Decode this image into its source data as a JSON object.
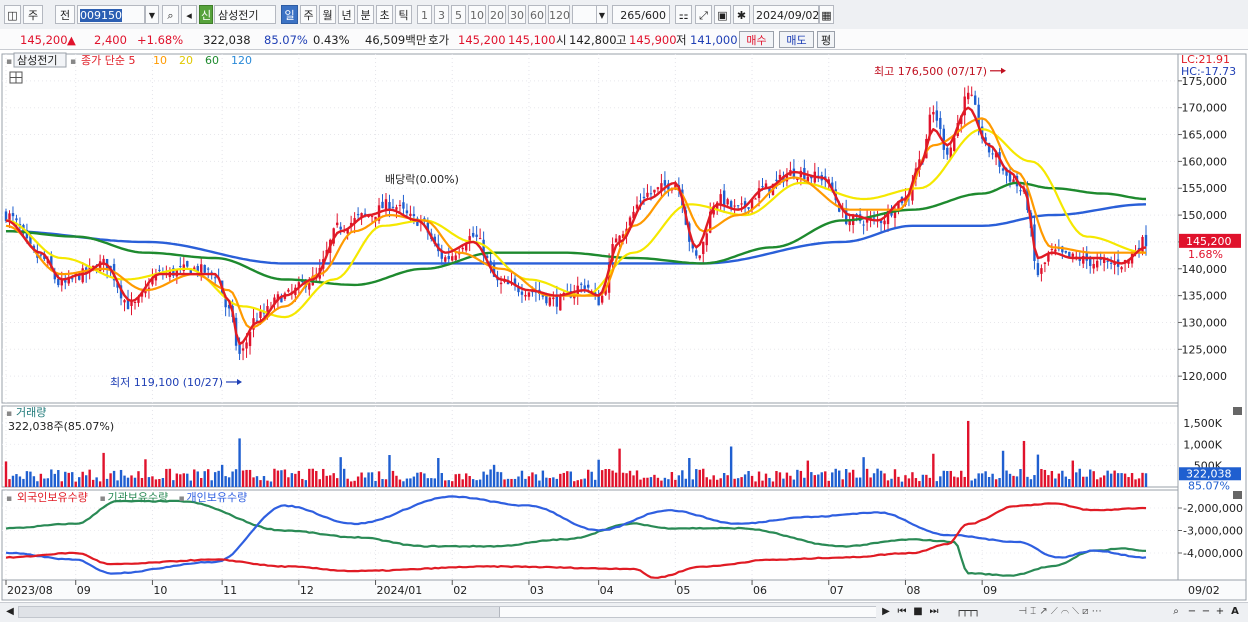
{
  "toolbar": {
    "mode_label": "주",
    "jeon_label": "전",
    "code": "009150",
    "new_label": "신",
    "name": "삼성전기",
    "periods": [
      "일",
      "주",
      "월",
      "년",
      "분",
      "초",
      "틱"
    ],
    "active_period": "일",
    "intervals": [
      "1",
      "3",
      "5",
      "10",
      "20",
      "30",
      "60",
      "120"
    ],
    "count": "265",
    "count_max": "/600",
    "date": "2024/09/02"
  },
  "quote": {
    "price": "145,200",
    "change": "2,400",
    "change_pct": "+1.68%",
    "volume": "322,038",
    "volume_ratio": "85.07%",
    "turnover_pct": "0.43%",
    "amount": "46,509백만",
    "hoga_label": "호가",
    "ask": "145,200",
    "bid": "145,100",
    "open_label": "시",
    "open": "142,800",
    "high_label": "고",
    "high": "145,900",
    "low_label": "저",
    "low": "141,000",
    "buy_label": "매수",
    "sell_label": "매도",
    "avg_label": "평"
  },
  "colors": {
    "up": "#e0122c",
    "down": "#1f5fd0",
    "ma5": "#e01b24",
    "ma10": "#ff9a00",
    "ma20": "#f5e800",
    "ma60": "#1e8a2e",
    "ma120": "#2a5fd8",
    "foreign": "#e01b24",
    "institution": "#2a8a55",
    "individual": "#2f5fe0"
  },
  "chart_data": [
    {
      "type": "candlestick",
      "stock_name": "삼성전기",
      "legend": [
        {
          "text": "종가 단순 5",
          "color": "#e01b24"
        },
        {
          "text": "10",
          "color": "#ff9a00"
        },
        {
          "text": "20",
          "color": "#e0c800"
        },
        {
          "text": "60",
          "color": "#1e8a2e"
        },
        {
          "text": "120",
          "color": "#2a8ad8"
        }
      ],
      "ylim": [
        115000,
        180000
      ],
      "yticks": [
        120000,
        125000,
        130000,
        135000,
        140000,
        145000,
        150000,
        155000,
        160000,
        165000,
        170000,
        175000
      ],
      "ytick_labels": [
        "120,000",
        "125,000",
        "130,000",
        "135,000",
        "140,000",
        "145,000",
        "150,000",
        "155,000",
        "160,000",
        "165,000",
        "170,000",
        "175,000"
      ],
      "lc_label": "LC:21.91",
      "hc_label": "HC:-17.73",
      "last_price_label": "145,200",
      "last_pct_label": "1.68%",
      "last_price": 145200,
      "annotations": {
        "high_text": "최고 176,500 (07/17)",
        "high_value": 176500,
        "low_text": "최저 119,100 (10/27)",
        "low_value": 119100,
        "dividend_text": "배당락(0.00%)"
      },
      "close_anchors": [
        [
          0,
          150000
        ],
        [
          10,
          142000
        ],
        [
          16,
          137000
        ],
        [
          22,
          139000
        ],
        [
          28,
          141000
        ],
        [
          36,
          133000
        ],
        [
          44,
          139000
        ],
        [
          54,
          140000
        ],
        [
          60,
          139000
        ],
        [
          64,
          132000
        ],
        [
          67,
          124000
        ],
        [
          72,
          131000
        ],
        [
          80,
          135000
        ],
        [
          88,
          138000
        ],
        [
          96,
          148000
        ],
        [
          104,
          150000
        ],
        [
          110,
          152000
        ],
        [
          118,
          149000
        ],
        [
          126,
          142000
        ],
        [
          134,
          146000
        ],
        [
          142,
          137000
        ],
        [
          150,
          136000
        ],
        [
          158,
          134000
        ],
        [
          166,
          137000
        ],
        [
          170,
          134000
        ],
        [
          176,
          147000
        ],
        [
          184,
          154000
        ],
        [
          192,
          156000
        ],
        [
          198,
          142000
        ],
        [
          204,
          153000
        ],
        [
          210,
          151000
        ],
        [
          218,
          155000
        ],
        [
          226,
          158000
        ],
        [
          234,
          157000
        ],
        [
          242,
          149000
        ],
        [
          250,
          149000
        ],
        [
          258,
          153000
        ],
        [
          262,
          160000
        ],
        [
          266,
          169000
        ],
        [
          270,
          162000
        ],
        [
          276,
          172000
        ],
        [
          282,
          162000
        ],
        [
          288,
          157000
        ],
        [
          292,
          154000
        ],
        [
          296,
          139000
        ],
        [
          300,
          143000
        ],
        [
          306,
          142000
        ],
        [
          314,
          141000
        ],
        [
          320,
          141000
        ],
        [
          327,
          145200
        ]
      ],
      "ma5_anchors": [
        [
          0,
          149000
        ],
        [
          10,
          143000
        ],
        [
          16,
          138000
        ],
        [
          22,
          139000
        ],
        [
          28,
          141000
        ],
        [
          36,
          134000
        ],
        [
          44,
          139000
        ],
        [
          54,
          139000
        ],
        [
          60,
          139000
        ],
        [
          64,
          134000
        ],
        [
          67,
          126000
        ],
        [
          72,
          130000
        ],
        [
          80,
          135000
        ],
        [
          88,
          138000
        ],
        [
          96,
          147000
        ],
        [
          104,
          150000
        ],
        [
          110,
          151000
        ],
        [
          118,
          149000
        ],
        [
          126,
          143000
        ],
        [
          134,
          145000
        ],
        [
          142,
          138000
        ],
        [
          150,
          136000
        ],
        [
          158,
          135000
        ],
        [
          166,
          136000
        ],
        [
          170,
          135000
        ],
        [
          176,
          145000
        ],
        [
          184,
          153000
        ],
        [
          192,
          156000
        ],
        [
          198,
          144000
        ],
        [
          204,
          152000
        ],
        [
          210,
          151000
        ],
        [
          218,
          155000
        ],
        [
          226,
          158000
        ],
        [
          234,
          157000
        ],
        [
          242,
          150000
        ],
        [
          250,
          149000
        ],
        [
          258,
          153000
        ],
        [
          262,
          159000
        ],
        [
          266,
          166000
        ],
        [
          270,
          163000
        ],
        [
          276,
          170000
        ],
        [
          282,
          163000
        ],
        [
          288,
          158000
        ],
        [
          292,
          155000
        ],
        [
          296,
          142000
        ],
        [
          300,
          143000
        ],
        [
          306,
          142000
        ],
        [
          314,
          142000
        ],
        [
          320,
          141000
        ],
        [
          327,
          144000
        ]
      ],
      "ma10_anchors": [
        [
          0,
          148000
        ],
        [
          16,
          139000
        ],
        [
          28,
          140000
        ],
        [
          40,
          136000
        ],
        [
          54,
          139000
        ],
        [
          64,
          136000
        ],
        [
          70,
          129000
        ],
        [
          80,
          133000
        ],
        [
          90,
          139000
        ],
        [
          100,
          147000
        ],
        [
          110,
          150000
        ],
        [
          120,
          149000
        ],
        [
          130,
          143000
        ],
        [
          142,
          140000
        ],
        [
          156,
          135000
        ],
        [
          170,
          135000
        ],
        [
          180,
          148000
        ],
        [
          192,
          155000
        ],
        [
          200,
          147000
        ],
        [
          210,
          150000
        ],
        [
          226,
          157000
        ],
        [
          242,
          151000
        ],
        [
          256,
          151000
        ],
        [
          266,
          163000
        ],
        [
          280,
          168000
        ],
        [
          290,
          158000
        ],
        [
          300,
          144000
        ],
        [
          312,
          143000
        ],
        [
          327,
          143000
        ]
      ],
      "ma20_anchors": [
        [
          0,
          149000
        ],
        [
          16,
          142000
        ],
        [
          34,
          138000
        ],
        [
          52,
          140000
        ],
        [
          68,
          133000
        ],
        [
          80,
          131000
        ],
        [
          94,
          138000
        ],
        [
          108,
          148000
        ],
        [
          120,
          149000
        ],
        [
          134,
          145000
        ],
        [
          150,
          138000
        ],
        [
          166,
          135000
        ],
        [
          180,
          143000
        ],
        [
          196,
          152000
        ],
        [
          212,
          150000
        ],
        [
          228,
          156000
        ],
        [
          246,
          153000
        ],
        [
          262,
          155000
        ],
        [
          280,
          166000
        ],
        [
          294,
          160000
        ],
        [
          310,
          146000
        ],
        [
          327,
          143000
        ]
      ],
      "ma60_anchors": [
        [
          0,
          147000
        ],
        [
          20,
          146000
        ],
        [
          40,
          143000
        ],
        [
          60,
          142000
        ],
        [
          80,
          138000
        ],
        [
          100,
          137000
        ],
        [
          120,
          140000
        ],
        [
          140,
          143000
        ],
        [
          160,
          143000
        ],
        [
          180,
          142000
        ],
        [
          200,
          141000
        ],
        [
          220,
          144000
        ],
        [
          240,
          149000
        ],
        [
          260,
          151000
        ],
        [
          280,
          154000
        ],
        [
          290,
          156000
        ],
        [
          300,
          155000
        ],
        [
          315,
          154000
        ],
        [
          327,
          153000
        ]
      ],
      "ma120_anchors": [
        [
          0,
          147000
        ],
        [
          40,
          145000
        ],
        [
          80,
          141000
        ],
        [
          120,
          141000
        ],
        [
          160,
          141000
        ],
        [
          200,
          141000
        ],
        [
          240,
          145000
        ],
        [
          260,
          148000
        ],
        [
          280,
          148000
        ],
        [
          300,
          150000
        ],
        [
          327,
          152000
        ]
      ]
    },
    {
      "type": "bar",
      "title": "거래량",
      "info": "322,038주(85.07%)",
      "ylim": [
        0,
        1900000
      ],
      "yticks": [
        500000,
        1000000,
        1500000
      ],
      "ytick_labels": [
        "500K",
        "1,000K",
        "1,500K"
      ],
      "last_label": "322,038",
      "last_pct_label": "85.07%",
      "base_volume": 280000,
      "spikes": [
        [
          0,
          600000
        ],
        [
          28,
          800000
        ],
        [
          40,
          650000
        ],
        [
          62,
          520000
        ],
        [
          67,
          1140000
        ],
        [
          96,
          700000
        ],
        [
          110,
          750000
        ],
        [
          124,
          680000
        ],
        [
          140,
          520000
        ],
        [
          170,
          640000
        ],
        [
          176,
          900000
        ],
        [
          196,
          680000
        ],
        [
          208,
          950000
        ],
        [
          230,
          620000
        ],
        [
          246,
          700000
        ],
        [
          266,
          780000
        ],
        [
          276,
          1550000
        ],
        [
          286,
          850000
        ],
        [
          292,
          1080000
        ],
        [
          296,
          760000
        ],
        [
          306,
          620000
        ],
        [
          327,
          322038
        ]
      ]
    },
    {
      "type": "line",
      "series_labels": [
        "외국인보유수량",
        "기관보유수량",
        "개인보유수량"
      ],
      "ylim": [
        -5200000,
        -1200000
      ],
      "yticks": [
        -2000000,
        -3000000,
        -4000000
      ],
      "ytick_labels": [
        "-2,000,000",
        "-3,000,000",
        "-4,000,000"
      ],
      "foreign_anchors": [
        [
          0,
          -4200000
        ],
        [
          20,
          -4000000
        ],
        [
          30,
          -4500000
        ],
        [
          60,
          -4300000
        ],
        [
          80,
          -4600000
        ],
        [
          100,
          -4800000
        ],
        [
          140,
          -4600000
        ],
        [
          180,
          -4700000
        ],
        [
          186,
          -5100000
        ],
        [
          200,
          -4600000
        ],
        [
          220,
          -4300000
        ],
        [
          240,
          -4200000
        ],
        [
          260,
          -4000000
        ],
        [
          270,
          -3600000
        ],
        [
          276,
          -2700000
        ],
        [
          290,
          -1900000
        ],
        [
          300,
          -1800000
        ],
        [
          312,
          -2100000
        ],
        [
          327,
          -2000000
        ]
      ],
      "institution_anchors": [
        [
          0,
          -2900000
        ],
        [
          20,
          -2700000
        ],
        [
          32,
          -1700000
        ],
        [
          50,
          -1700000
        ],
        [
          80,
          -3000000
        ],
        [
          100,
          -3300000
        ],
        [
          120,
          -3700000
        ],
        [
          140,
          -3700000
        ],
        [
          160,
          -3400000
        ],
        [
          180,
          -2700000
        ],
        [
          190,
          -2900000
        ],
        [
          210,
          -2900000
        ],
        [
          240,
          -3700000
        ],
        [
          260,
          -3400000
        ],
        [
          272,
          -3500000
        ],
        [
          276,
          -4900000
        ],
        [
          288,
          -5000000
        ],
        [
          300,
          -4600000
        ],
        [
          312,
          -3900000
        ],
        [
          320,
          -3800000
        ],
        [
          327,
          -3900000
        ]
      ],
      "individual_anchors": [
        [
          0,
          -4000000
        ],
        [
          20,
          -4300000
        ],
        [
          30,
          -4900000
        ],
        [
          60,
          -4400000
        ],
        [
          80,
          -1900000
        ],
        [
          100,
          -2700000
        ],
        [
          128,
          -1500000
        ],
        [
          150,
          -1900000
        ],
        [
          170,
          -3000000
        ],
        [
          190,
          -2100000
        ],
        [
          210,
          -2700000
        ],
        [
          230,
          -2400000
        ],
        [
          250,
          -2200000
        ],
        [
          270,
          -3200000
        ],
        [
          290,
          -3500000
        ],
        [
          302,
          -4200000
        ],
        [
          312,
          -3900000
        ],
        [
          327,
          -4200000
        ]
      ]
    }
  ],
  "x_axis": {
    "labels": [
      "2023/08",
      "09",
      "10",
      "11",
      "12",
      "2024/01",
      "02",
      "03",
      "04",
      "05",
      "06",
      "07",
      "08",
      "09",
      "09/02"
    ],
    "label_index": [
      0,
      20,
      42,
      62,
      84,
      106,
      128,
      150,
      170,
      192,
      214,
      236,
      258,
      280,
      999
    ]
  },
  "scrollbar": {
    "left_arrow": "◀",
    "right_arrow": "▶",
    "controls": [
      "⏮",
      "■",
      "⏭"
    ]
  }
}
